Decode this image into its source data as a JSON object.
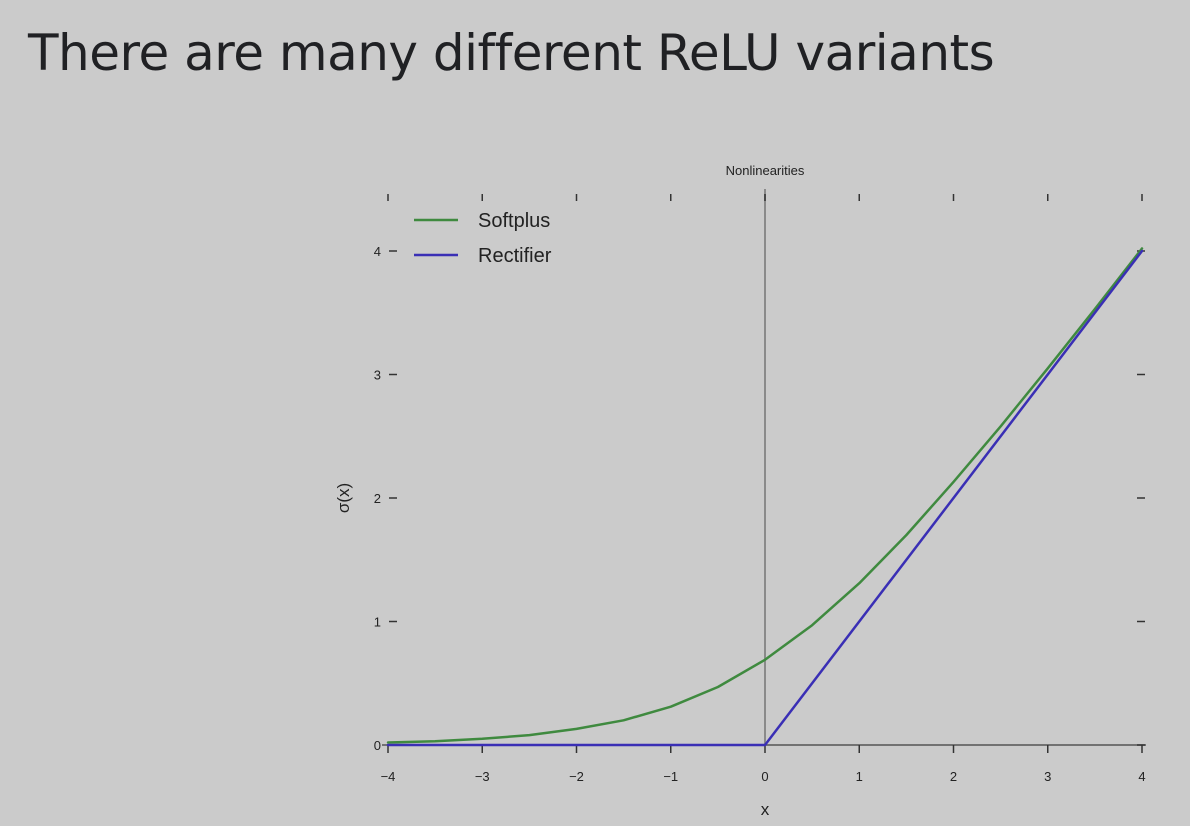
{
  "slide": {
    "title": "There are many different ReLU variants"
  },
  "chart_data": {
    "type": "line",
    "title": "Nonlinearities",
    "xlabel": "x",
    "ylabel": "σ(x)",
    "xlim": [
      -4,
      4
    ],
    "ylim": [
      0,
      4
    ],
    "xticks": [
      "−4",
      "−3",
      "−2",
      "−1",
      "0",
      "1",
      "2",
      "3",
      "4"
    ],
    "yticks": [
      "0",
      "1",
      "2",
      "3",
      "4"
    ],
    "legend_position": "top-left",
    "grid": false,
    "series": [
      {
        "name": "Softplus",
        "color": "#3f8a3f",
        "x": [
          -4,
          -3.5,
          -3,
          -2.5,
          -2,
          -1.5,
          -1,
          -0.5,
          0,
          0.5,
          1,
          1.5,
          2,
          2.5,
          3,
          3.5,
          4
        ],
        "y": [
          0.02,
          0.03,
          0.05,
          0.08,
          0.13,
          0.2,
          0.31,
          0.47,
          0.69,
          0.97,
          1.31,
          1.7,
          2.13,
          2.58,
          3.05,
          3.53,
          4.02
        ]
      },
      {
        "name": "Rectifier",
        "color": "#3a2fb5",
        "x": [
          -4,
          0,
          4
        ],
        "y": [
          0,
          0,
          4
        ]
      }
    ]
  }
}
